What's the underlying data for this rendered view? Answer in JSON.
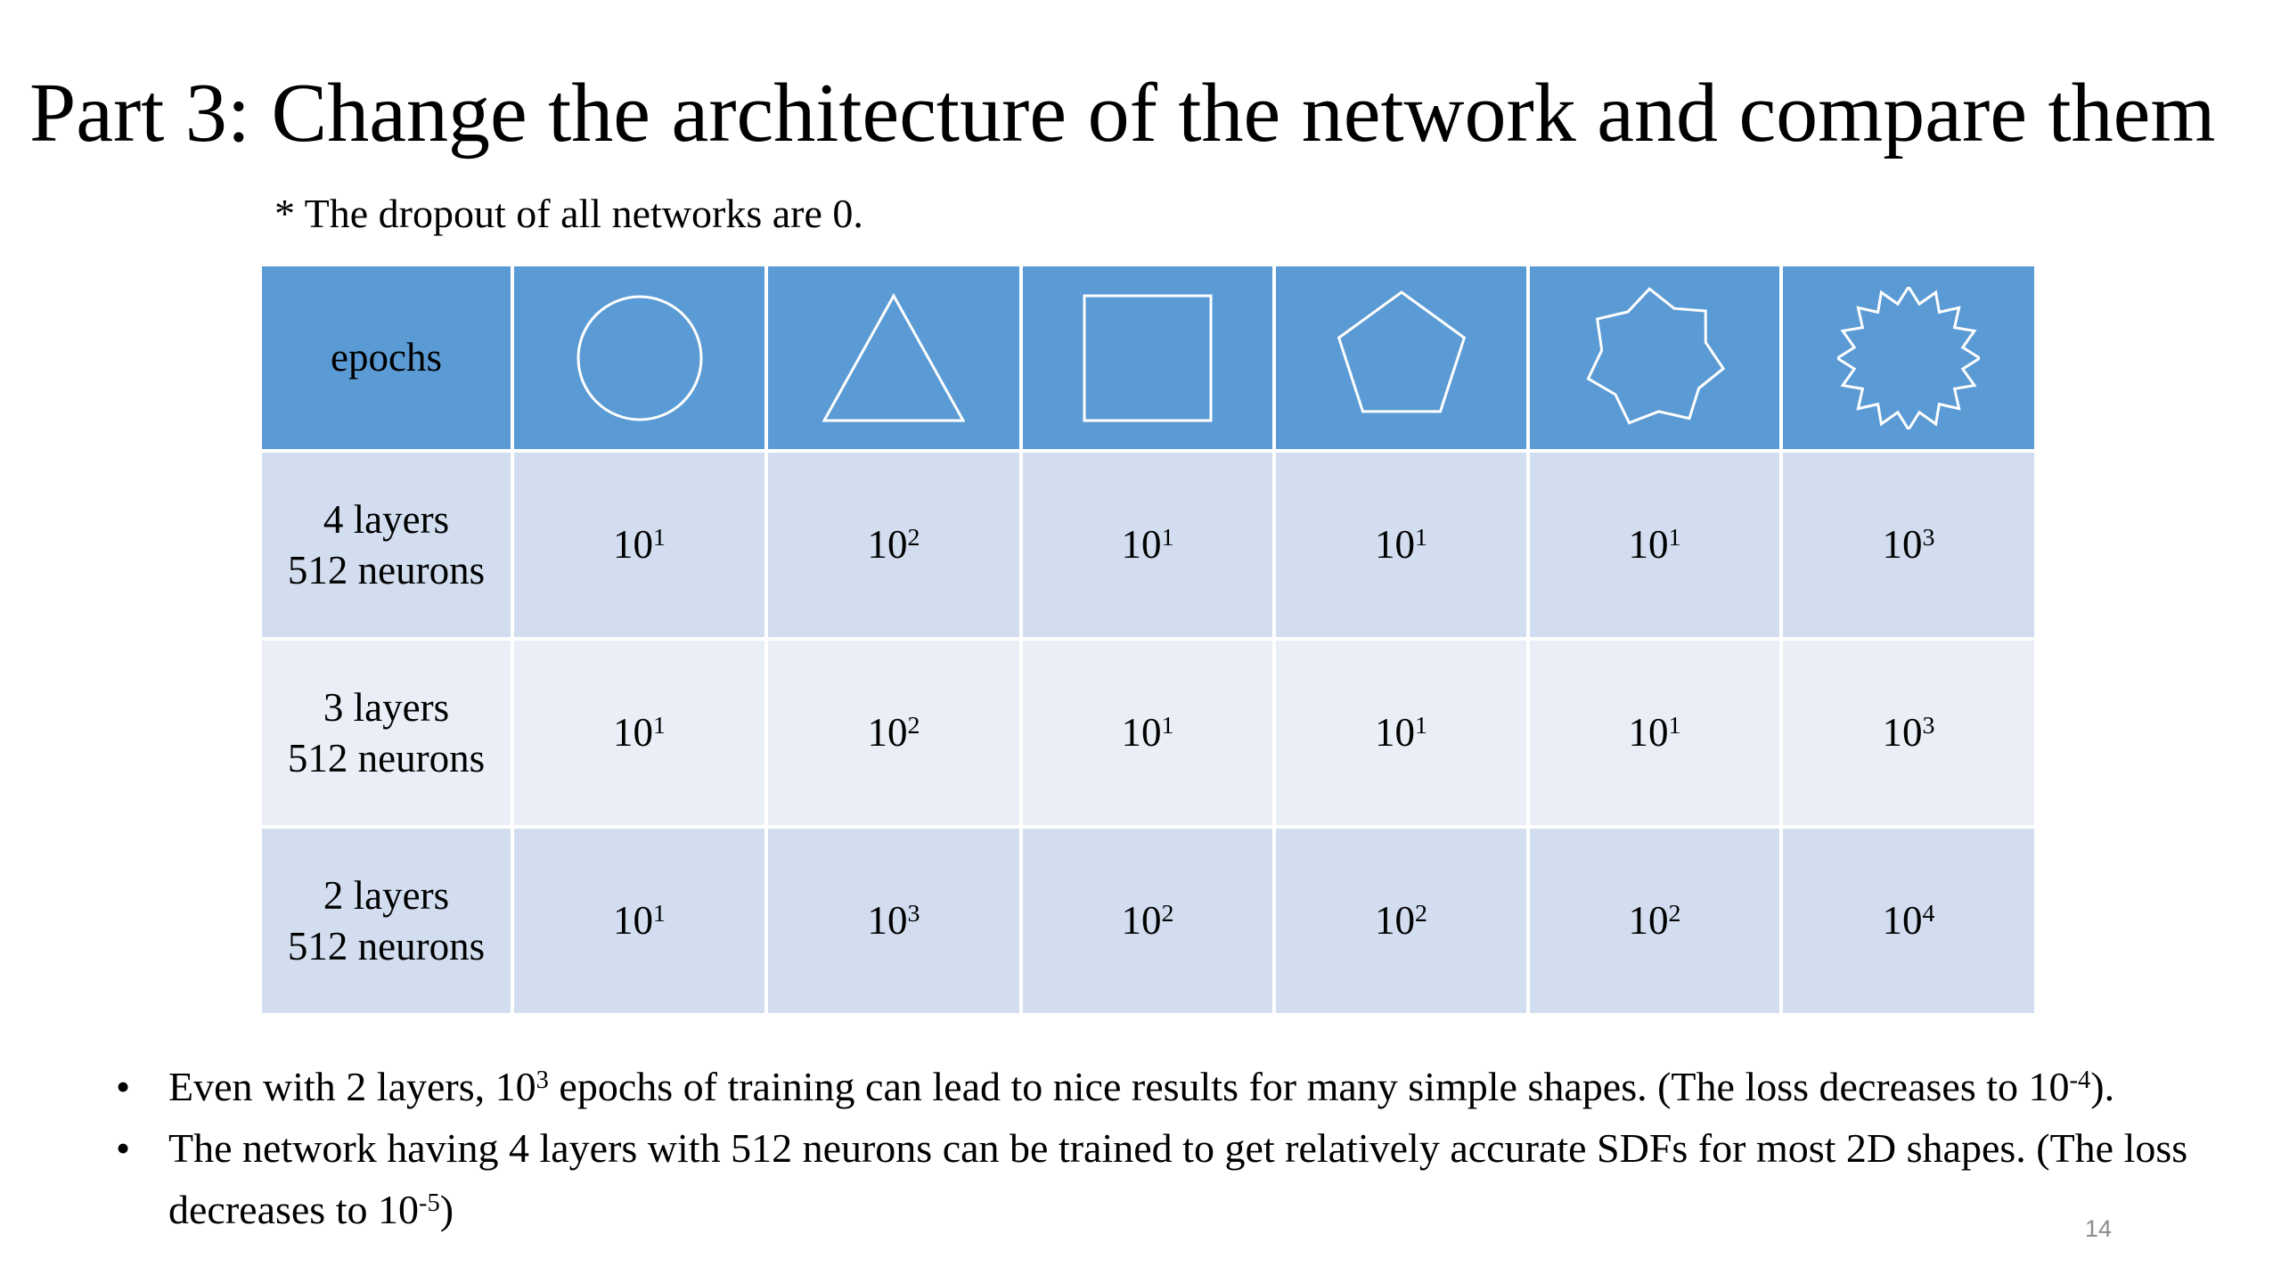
{
  "title": "Part 3: Change the architecture of the network and compare them",
  "note": "* The dropout of all networks are 0.",
  "table": {
    "header": "epochs",
    "rows": [
      {
        "label": [
          "4 layers",
          "512 neurons"
        ],
        "cells": [
          [
            "10",
            "1"
          ],
          [
            "10",
            "2"
          ],
          [
            "10",
            "1"
          ],
          [
            "10",
            "1"
          ],
          [
            "10",
            "1"
          ],
          [
            "10",
            "3"
          ]
        ]
      },
      {
        "label": [
          "3 layers",
          "512 neurons"
        ],
        "cells": [
          [
            "10",
            "1"
          ],
          [
            "10",
            "2"
          ],
          [
            "10",
            "1"
          ],
          [
            "10",
            "1"
          ],
          [
            "10",
            "1"
          ],
          [
            "10",
            "3"
          ]
        ]
      },
      {
        "label": [
          "2 layers",
          "512 neurons"
        ],
        "cells": [
          [
            "10",
            "1"
          ],
          [
            "10",
            "3"
          ],
          [
            "10",
            "2"
          ],
          [
            "10",
            "2"
          ],
          [
            "10",
            "2"
          ],
          [
            "10",
            "4"
          ]
        ]
      }
    ]
  },
  "bullets": [
    [
      {
        "text": "Even with 2 layers, 10"
      },
      {
        "sup": "3"
      },
      {
        "text": " epochs of training can lead to nice results for many simple shapes. (The loss decreases to 10"
      },
      {
        "sup": "-4"
      },
      {
        "text": ")."
      }
    ],
    [
      {
        "text": "The network having 4 layers with 512 neurons can be trained to get relatively accurate SDFs for most 2D shapes. (The loss decreases to 10"
      },
      {
        "sup": "-5"
      },
      {
        "text": ")"
      }
    ]
  ],
  "page_number": "14"
}
